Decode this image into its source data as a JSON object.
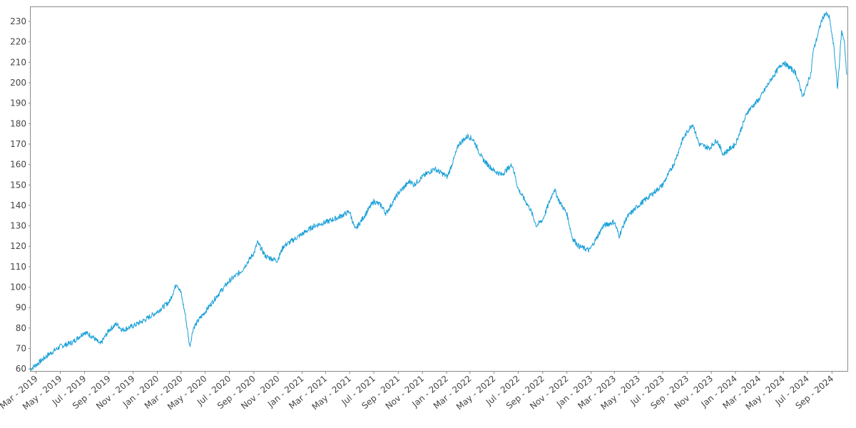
{
  "chart_data": {
    "type": "line",
    "title": "",
    "xlabel": "",
    "ylabel": "",
    "grid": false,
    "line_color": "#1aa0d8",
    "xlim": [
      "2019-02-15",
      "2024-10-10"
    ],
    "ylim": [
      59,
      237
    ],
    "y_ticks": [
      60,
      70,
      80,
      90,
      100,
      110,
      120,
      130,
      140,
      150,
      160,
      170,
      180,
      190,
      200,
      210,
      220,
      230
    ],
    "x_tick_dates": [
      "2019-03-01",
      "2019-05-01",
      "2019-07-01",
      "2019-09-01",
      "2019-11-01",
      "2020-01-01",
      "2020-03-01",
      "2020-05-01",
      "2020-07-01",
      "2020-09-01",
      "2020-11-01",
      "2021-01-01",
      "2021-03-01",
      "2021-05-01",
      "2021-07-01",
      "2021-09-01",
      "2021-11-01",
      "2022-01-01",
      "2022-03-01",
      "2022-05-01",
      "2022-07-01",
      "2022-09-01",
      "2022-11-01",
      "2023-01-01",
      "2023-03-01",
      "2023-05-01",
      "2023-07-01",
      "2023-09-01",
      "2023-11-01",
      "2024-01-01",
      "2024-03-01",
      "2024-05-01",
      "2024-07-01",
      "2024-09-01"
    ],
    "x_tick_labels": [
      "Mar - 2019",
      "May - 2019",
      "Jul - 2019",
      "Sep - 2019",
      "Nov - 2019",
      "Jan - 2020",
      "Mar - 2020",
      "May - 2020",
      "Jul - 2020",
      "Sep - 2020",
      "Nov - 2020",
      "Jan - 2021",
      "Mar - 2021",
      "May - 2021",
      "Jul - 2021",
      "Sep - 2021",
      "Nov - 2021",
      "Jan - 2022",
      "Mar - 2022",
      "May - 2022",
      "Jul - 2022",
      "Sep - 2022",
      "Nov - 2022",
      "Jan - 2023",
      "Mar - 2023",
      "May - 2023",
      "Jul - 2023",
      "Sep - 2023",
      "Nov - 2023",
      "Jan - 2024",
      "Mar - 2024",
      "May - 2024",
      "Jul - 2024",
      "Sep - 2024"
    ],
    "series": [
      {
        "x": [
          "2019-02-15",
          "2019-03-01",
          "2019-04-01",
          "2019-05-01",
          "2019-06-01",
          "2019-07-01",
          "2019-07-20",
          "2019-08-10",
          "2019-09-01",
          "2019-09-20",
          "2019-10-05",
          "2019-11-01",
          "2019-12-01",
          "2020-01-01",
          "2020-02-01",
          "2020-02-19",
          "2020-03-01",
          "2020-03-12",
          "2020-03-23",
          "2020-04-01",
          "2020-04-15",
          "2020-05-01",
          "2020-06-01",
          "2020-07-01",
          "2020-08-01",
          "2020-09-02",
          "2020-09-10",
          "2020-10-01",
          "2020-10-30",
          "2020-11-15",
          "2020-12-01",
          "2021-01-01",
          "2021-02-01",
          "2021-03-05",
          "2021-04-01",
          "2021-05-01",
          "2021-05-15",
          "2021-06-01",
          "2021-07-01",
          "2021-07-20",
          "2021-08-01",
          "2021-09-01",
          "2021-10-01",
          "2021-10-10",
          "2021-11-01",
          "2021-12-01",
          "2022-01-03",
          "2022-01-20",
          "2022-02-01",
          "2022-02-24",
          "2022-03-10",
          "2022-04-01",
          "2022-04-15",
          "2022-05-01",
          "2022-05-20",
          "2022-06-16",
          "2022-07-01",
          "2022-08-01",
          "2022-08-16",
          "2022-09-01",
          "2022-09-30",
          "2022-10-13",
          "2022-11-01",
          "2022-11-15",
          "2022-12-01",
          "2022-12-28",
          "2023-01-15",
          "2023-02-01",
          "2023-03-01",
          "2023-03-13",
          "2023-04-01",
          "2023-05-01",
          "2023-06-01",
          "2023-07-01",
          "2023-07-31",
          "2023-08-20",
          "2023-09-01",
          "2023-09-15",
          "2023-10-01",
          "2023-10-27",
          "2023-11-15",
          "2023-12-01",
          "2024-01-01",
          "2024-02-01",
          "2024-03-01",
          "2024-04-01",
          "2024-04-19",
          "2024-05-01",
          "2024-06-01",
          "2024-06-20",
          "2024-07-10",
          "2024-07-15",
          "2024-07-25",
          "2024-08-05",
          "2024-08-15",
          "2024-08-25",
          "2024-09-06",
          "2024-09-15",
          "2024-09-25",
          "2024-10-02",
          "2024-10-08"
        ],
        "y": [
          60,
          62,
          67,
          71,
          73,
          78,
          76,
          72,
          79,
          82,
          79,
          81,
          84,
          88,
          93,
          102,
          97,
          86,
          71,
          80,
          84,
          88,
          96,
          103,
          108,
          117,
          122,
          115,
          113,
          120,
          122,
          126,
          130,
          132,
          134,
          137,
          128,
          133,
          142,
          140,
          136,
          146,
          152,
          150,
          154,
          158,
          154,
          163,
          170,
          174,
          172,
          163,
          160,
          157,
          155,
          160,
          148,
          138,
          130,
          133,
          148,
          142,
          136,
          124,
          120,
          118,
          124,
          130,
          132,
          125,
          134,
          140,
          145,
          150,
          161,
          172,
          176,
          180,
          170,
          168,
          172,
          165,
          170,
          186,
          192,
          202,
          207,
          210,
          205,
          193,
          205,
          215,
          222,
          230,
          234,
          232,
          217,
          197,
          225,
          221,
          204
        ]
      }
    ]
  }
}
